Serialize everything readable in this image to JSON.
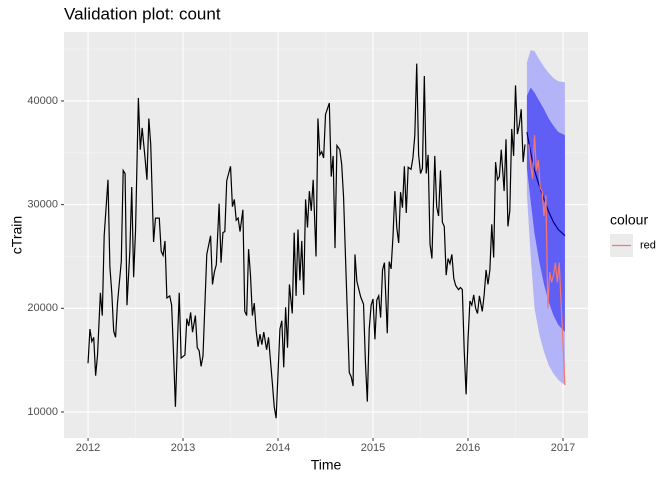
{
  "chart_data": {
    "type": "forecast",
    "title": "Validation plot: count",
    "x_label": "Time",
    "y_label": "cTrain",
    "xlim": [
      2011.747,
      2017.263
    ],
    "ylim": [
      7490,
      46650
    ],
    "xticks": [
      2012,
      2013,
      2014,
      2015,
      2016,
      2017
    ],
    "yticks": [
      10000,
      20000,
      30000,
      40000
    ],
    "grid": true,
    "legend_position": "right",
    "legend_title": "colour",
    "observed": {
      "color": "#000000",
      "x": [
        2012.0,
        2012.02,
        2012.04,
        2012.06,
        2012.08,
        2012.1,
        2012.13,
        2012.15,
        2012.17,
        2012.21,
        2012.23,
        2012.25,
        2012.27,
        2012.29,
        2012.31,
        2012.35,
        2012.37,
        2012.39,
        2012.41,
        2012.44,
        2012.46,
        2012.48,
        2012.5,
        2012.53,
        2012.55,
        2012.57,
        2012.6,
        2012.62,
        2012.64,
        2012.66,
        2012.69,
        2012.71,
        2012.75,
        2012.77,
        2012.79,
        2012.81,
        2012.83,
        2012.86,
        2012.88,
        2012.9,
        2012.92,
        2012.94,
        2012.96,
        2012.98,
        2013.02,
        2013.04,
        2013.06,
        2013.08,
        2013.1,
        2013.13,
        2013.15,
        2013.17,
        2013.19,
        2013.21,
        2013.25,
        2013.29,
        2013.31,
        2013.33,
        2013.35,
        2013.38,
        2013.4,
        2013.42,
        2013.44,
        2013.46,
        2013.5,
        2013.52,
        2013.54,
        2013.56,
        2013.58,
        2013.6,
        2013.63,
        2013.65,
        2013.67,
        2013.69,
        2013.71,
        2013.73,
        2013.75,
        2013.77,
        2013.79,
        2013.81,
        2013.83,
        2013.85,
        2013.88,
        2013.9,
        2013.94,
        2013.96,
        2013.98,
        2014.02,
        2014.04,
        2014.06,
        2014.08,
        2014.1,
        2014.12,
        2014.15,
        2014.17,
        2014.19,
        2014.21,
        2014.23,
        2014.25,
        2014.27,
        2014.29,
        2014.31,
        2014.33,
        2014.35,
        2014.37,
        2014.4,
        2014.42,
        2014.44,
        2014.46,
        2014.48,
        2014.5,
        2014.54,
        2014.56,
        2014.58,
        2014.6,
        2014.62,
        2014.65,
        2014.67,
        2014.69,
        2014.71,
        2014.75,
        2014.77,
        2014.79,
        2014.81,
        2014.83,
        2014.87,
        2014.9,
        2014.92,
        2014.94,
        2014.96,
        2014.98,
        2015.0,
        2015.02,
        2015.04,
        2015.06,
        2015.08,
        2015.1,
        2015.12,
        2015.15,
        2015.17,
        2015.19,
        2015.21,
        2015.23,
        2015.25,
        2015.27,
        2015.29,
        2015.31,
        2015.33,
        2015.35,
        2015.37,
        2015.4,
        2015.42,
        2015.44,
        2015.46,
        2015.48,
        2015.5,
        2015.52,
        2015.54,
        2015.56,
        2015.58,
        2015.6,
        2015.62,
        2015.65,
        2015.67,
        2015.69,
        2015.71,
        2015.73,
        2015.75,
        2015.77,
        2015.79,
        2015.81,
        2015.83,
        2015.85,
        2015.87,
        2015.9,
        2015.92,
        2015.94,
        2015.96,
        2015.98,
        2016.0,
        2016.02,
        2016.04,
        2016.06,
        2016.08,
        2016.1,
        2016.12,
        2016.15,
        2016.17,
        2016.19,
        2016.21,
        2016.23,
        2016.25,
        2016.27,
        2016.29,
        2016.31,
        2016.33,
        2016.35,
        2016.38,
        2016.4,
        2016.42,
        2016.44,
        2016.46,
        2016.48,
        2016.5,
        2016.52,
        2016.54,
        2016.56,
        2016.58,
        2016.6
      ],
      "values": [
        14700,
        18000,
        16800,
        17200,
        13500,
        15500,
        21500,
        19300,
        27000,
        32400,
        24000,
        21500,
        17800,
        17200,
        20500,
        24500,
        33300,
        33000,
        20300,
        25500,
        31700,
        23000,
        27500,
        40300,
        35300,
        37400,
        34500,
        32400,
        38300,
        35800,
        26400,
        28700,
        28700,
        25500,
        25100,
        26500,
        21000,
        21200,
        20300,
        15600,
        10500,
        16400,
        21500,
        15200,
        15500,
        19000,
        18300,
        19600,
        17700,
        19300,
        16200,
        15900,
        14400,
        15400,
        25200,
        27000,
        22300,
        23500,
        24200,
        30100,
        24400,
        27300,
        27400,
        32300,
        33700,
        29800,
        30500,
        28500,
        28700,
        27400,
        29500,
        19700,
        19300,
        25700,
        23200,
        19300,
        20500,
        17800,
        16300,
        17500,
        16500,
        17700,
        16000,
        17200,
        12800,
        10500,
        9400,
        18000,
        18800,
        14300,
        20100,
        16200,
        22300,
        19500,
        27300,
        21200,
        27600,
        22700,
        26500,
        21300,
        30500,
        27800,
        31300,
        29400,
        32400,
        25000,
        38300,
        34800,
        35100,
        34500,
        38700,
        39800,
        32700,
        34700,
        25800,
        35700,
        35300,
        33900,
        30700,
        25000,
        13800,
        13400,
        12500,
        25200,
        22600,
        21100,
        20400,
        14800,
        11000,
        18000,
        20300,
        20900,
        17000,
        20800,
        21200,
        19100,
        23700,
        24400,
        17600,
        24500,
        23800,
        26900,
        31300,
        27800,
        26300,
        31200,
        29700,
        33700,
        29200,
        33600,
        33400,
        34500,
        36700,
        43600,
        34800,
        33000,
        33500,
        42400,
        33000,
        34800,
        26200,
        24800,
        34700,
        29800,
        28900,
        33300,
        28300,
        27900,
        23200,
        24800,
        24300,
        25200,
        22900,
        22200,
        21800,
        22000,
        21800,
        15900,
        11700,
        17000,
        20700,
        20300,
        21300,
        20000,
        19500,
        21200,
        19700,
        21300,
        23700,
        22300,
        23700,
        28100,
        24900,
        34100,
        32400,
        32700,
        35300,
        31300,
        36300,
        27900,
        29400,
        37300,
        34700,
        41500,
        36800,
        37700,
        39200,
        34100,
        35800
      ]
    },
    "forecast": {
      "mean_color": "#00008b",
      "band80_color": "#5f5ff5",
      "band95_color": "#b3b3f7",
      "x": [
        2016.62,
        2016.66,
        2016.7,
        2016.75,
        2016.8,
        2016.85,
        2016.9,
        2016.95,
        2017.02
      ],
      "mean": [
        37000,
        35000,
        33300,
        31800,
        30500,
        29300,
        28300,
        27600,
        27000
      ],
      "lo80": [
        33500,
        30300,
        27200,
        24500,
        22300,
        20600,
        19300,
        18400,
        17700
      ],
      "hi80": [
        40500,
        41300,
        40800,
        40000,
        39200,
        38300,
        37600,
        37000,
        36700
      ],
      "lo95": [
        31000,
        25000,
        20000,
        17500,
        15800,
        14500,
        13700,
        13100,
        12600
      ],
      "hi95": [
        43700,
        44900,
        44800,
        44000,
        43300,
        42700,
        42200,
        41900,
        41800
      ]
    },
    "series": [
      {
        "name": "red",
        "color": "#f8766d",
        "x": [
          2016.64,
          2016.66,
          2016.68,
          2016.7,
          2016.72,
          2016.74,
          2016.76,
          2016.78,
          2016.8,
          2016.82,
          2016.84,
          2016.86,
          2016.88,
          2016.9,
          2016.92,
          2016.94,
          2016.96,
          2017.02
        ],
        "values": [
          35800,
          33800,
          32500,
          36700,
          33300,
          34300,
          31600,
          31300,
          28900,
          30900,
          20000,
          23500,
          22500,
          23200,
          24400,
          22500,
          24400,
          12600
        ]
      }
    ]
  }
}
